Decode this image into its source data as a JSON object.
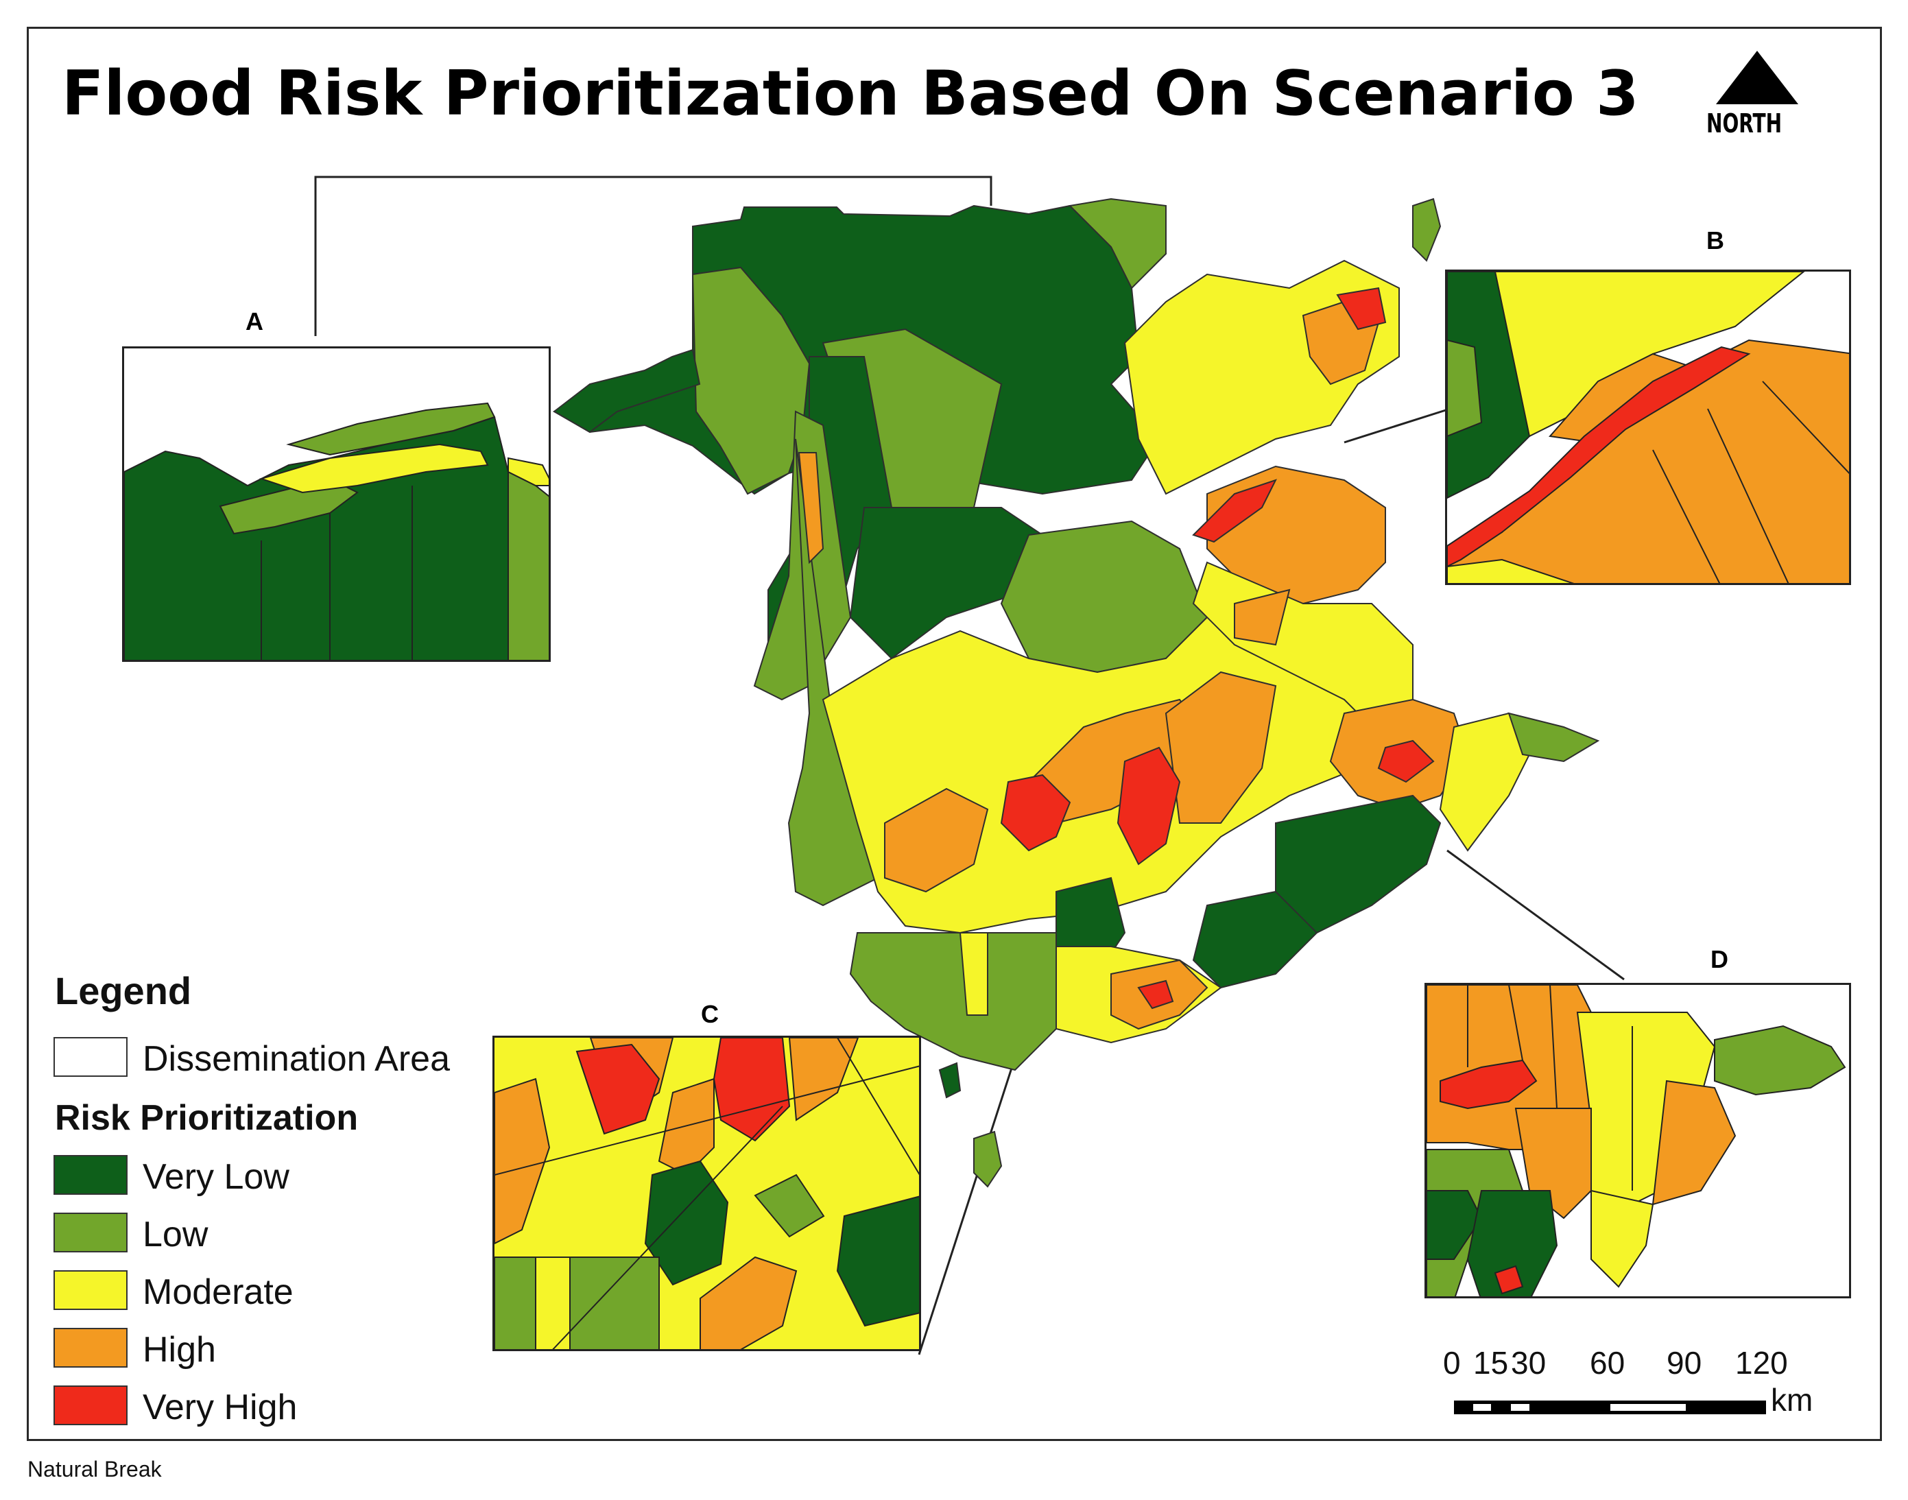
{
  "title": "Flood Risk Prioritization Based On Scenario 3",
  "north_arrow": {
    "label": "NORTH"
  },
  "colors": {
    "very_low": "#0e5f1a",
    "low": "#72a62b",
    "moderate": "#f5f52a",
    "high": "#f39a21",
    "very_high": "#ef2a1b",
    "boundary": "#333333"
  },
  "insets": [
    {
      "label": "A",
      "description_icon": "inset-map"
    },
    {
      "label": "B",
      "description_icon": "inset-map"
    },
    {
      "label": "C",
      "description_icon": "inset-map"
    },
    {
      "label": "D",
      "description_icon": "inset-map"
    }
  ],
  "legend": {
    "title": "Legend",
    "boundary_label": "Dissemination Area",
    "subtitle": "Risk Prioritization",
    "classes": [
      {
        "label": "Very Low",
        "color": "#0e5f1a"
      },
      {
        "label": "Low",
        "color": "#72a62b"
      },
      {
        "label": "Moderate",
        "color": "#f5f52a"
      },
      {
        "label": "High",
        "color": "#f39a21"
      },
      {
        "label": "Very High",
        "color": "#ef2a1b"
      }
    ]
  },
  "scale_bar": {
    "ticks": [
      "0",
      "15",
      "30",
      "60",
      "90",
      "120"
    ],
    "unit": "km"
  },
  "footer": "Natural Break"
}
